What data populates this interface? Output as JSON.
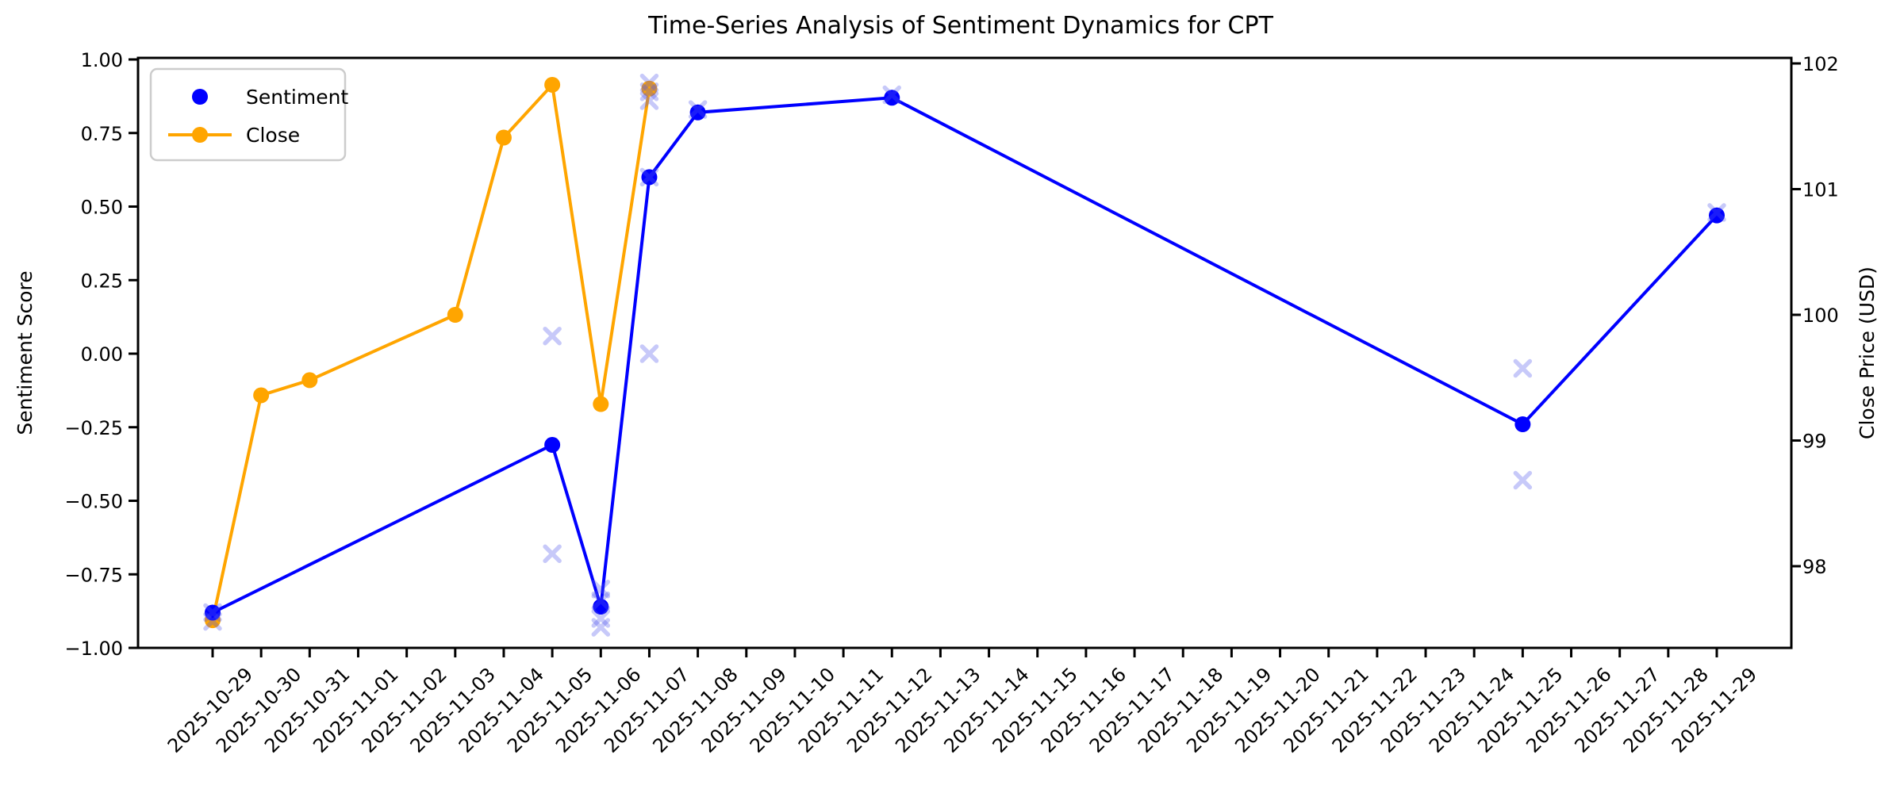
{
  "chart_data": {
    "type": "line",
    "title": "Time-Series Analysis of Sentiment Dynamics for CPT",
    "xlabel": "",
    "ylabel_left": "Sentiment Score",
    "ylabel_right": "Close Price (USD)",
    "grid": false,
    "legend_position": "upper-left",
    "x_tick_labels": [
      "2025-10-29",
      "2025-10-30",
      "2025-10-31",
      "2025-11-01",
      "2025-11-02",
      "2025-11-03",
      "2025-11-04",
      "2025-11-05",
      "2025-11-06",
      "2025-11-07",
      "2025-11-08",
      "2025-11-09",
      "2025-11-10",
      "2025-11-11",
      "2025-11-12",
      "2025-11-13",
      "2025-11-14",
      "2025-11-15",
      "2025-11-16",
      "2025-11-17",
      "2025-11-18",
      "2025-11-19",
      "2025-11-20",
      "2025-11-21",
      "2025-11-22",
      "2025-11-23",
      "2025-11-24",
      "2025-11-25",
      "2025-11-26",
      "2025-11-27",
      "2025-11-28",
      "2025-11-29"
    ],
    "left_axis": {
      "label": "Sentiment Score",
      "tick_labels": [
        "1.00",
        "0.75",
        "0.50",
        "0.25",
        "0.00",
        "−0.25",
        "−0.50",
        "−0.75",
        "−1.00"
      ],
      "range": [
        -1.0,
        1.0
      ]
    },
    "right_axis": {
      "label": "Close Price (USD)",
      "tick_labels": [
        "102",
        "101",
        "100",
        "99",
        "98"
      ],
      "range": [
        97.35,
        102.05
      ]
    },
    "series": [
      {
        "name": "Sentiment",
        "axis": "left",
        "style": "line-with-dots",
        "color": "#0000ff",
        "points": [
          {
            "date": "2025-10-29",
            "value": -0.88
          },
          {
            "date": "2025-11-05",
            "value": -0.31
          },
          {
            "date": "2025-11-06",
            "value": -0.86
          },
          {
            "date": "2025-11-07",
            "value": 0.6
          },
          {
            "date": "2025-11-08",
            "value": 0.82
          },
          {
            "date": "2025-11-12",
            "value": 0.87
          },
          {
            "date": "2025-11-25",
            "value": -0.24
          },
          {
            "date": "2025-11-29",
            "value": 0.47
          }
        ]
      },
      {
        "name": "Close",
        "axis": "right",
        "style": "line-with-dots",
        "color": "#ffa500",
        "points": [
          {
            "date": "2025-10-29",
            "value": 97.57
          },
          {
            "date": "2025-10-30",
            "value": 99.36
          },
          {
            "date": "2025-10-31",
            "value": 99.48
          },
          {
            "date": "2025-11-03",
            "value": 100.0
          },
          {
            "date": "2025-11-04",
            "value": 101.41
          },
          {
            "date": "2025-11-05",
            "value": 101.83
          },
          {
            "date": "2025-11-06",
            "value": 99.29
          },
          {
            "date": "2025-11-07",
            "value": 101.8
          }
        ]
      }
    ],
    "scatter_markers": {
      "name": "individual-sentiment-observations",
      "marker": "x",
      "axis": "left",
      "color": "#5058eb",
      "opacity": 0.32,
      "points": [
        {
          "date": "2025-10-29",
          "value": -0.88
        },
        {
          "date": "2025-10-29",
          "value": -0.91
        },
        {
          "date": "2025-11-05",
          "value": 0.06
        },
        {
          "date": "2025-11-05",
          "value": -0.68
        },
        {
          "date": "2025-11-06",
          "value": -0.8
        },
        {
          "date": "2025-11-06",
          "value": -0.84
        },
        {
          "date": "2025-11-06",
          "value": -0.9
        },
        {
          "date": "2025-11-06",
          "value": -0.93
        },
        {
          "date": "2025-11-07",
          "value": 0.92
        },
        {
          "date": "2025-11-07",
          "value": 0.89
        },
        {
          "date": "2025-11-07",
          "value": 0.86
        },
        {
          "date": "2025-11-07",
          "value": 0.6
        },
        {
          "date": "2025-11-07",
          "value": 0.0
        },
        {
          "date": "2025-11-08",
          "value": 0.83
        },
        {
          "date": "2025-11-12",
          "value": 0.88
        },
        {
          "date": "2025-11-25",
          "value": -0.05
        },
        {
          "date": "2025-11-25",
          "value": -0.43
        },
        {
          "date": "2025-11-29",
          "value": 0.48
        }
      ]
    }
  }
}
